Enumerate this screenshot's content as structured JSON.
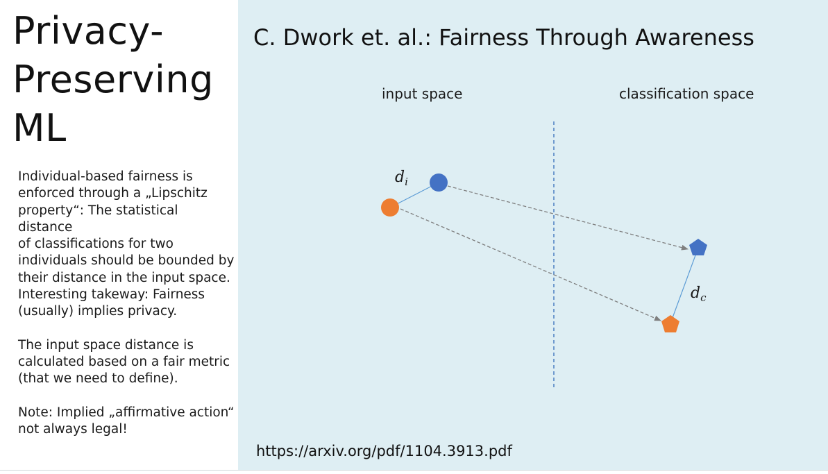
{
  "sidebar": {
    "title_lines": [
      "Privacy-",
      "Preserving",
      "ML"
    ],
    "paragraph_1": [
      "Individual-based fairness is",
      "enforced through a „Lipschitz",
      "property“: The statistical distance",
      "of classifications for two",
      "individuals should be bounded by",
      "their distance in the input space.",
      "Interesting takeway: Fairness",
      "(usually) implies privacy."
    ],
    "paragraph_2": [
      "The input space distance is",
      "calculated based on a fair metric",
      "(that we need to define)."
    ],
    "paragraph_3": [
      "Note: Implied „affirmative action“",
      "not always legal!"
    ]
  },
  "main": {
    "heading": "C. Dwork et. al.: Fairness Through Awareness",
    "input_space_label": "input space",
    "classification_space_label": "classification space",
    "distance_input_symbol": "d",
    "distance_input_subscript": "i",
    "distance_class_symbol": "d",
    "distance_class_subscript": "c",
    "link": "https://arxiv.org/pdf/1104.3913.pdf"
  },
  "colors": {
    "panel_background": "#deeef3",
    "blue_individual": "#4472c4",
    "orange_individual": "#ed7d31",
    "connector_line": "#5b9bd5",
    "mapping_arrow": "#7f7f7f",
    "separator": "#4a7fc1"
  }
}
